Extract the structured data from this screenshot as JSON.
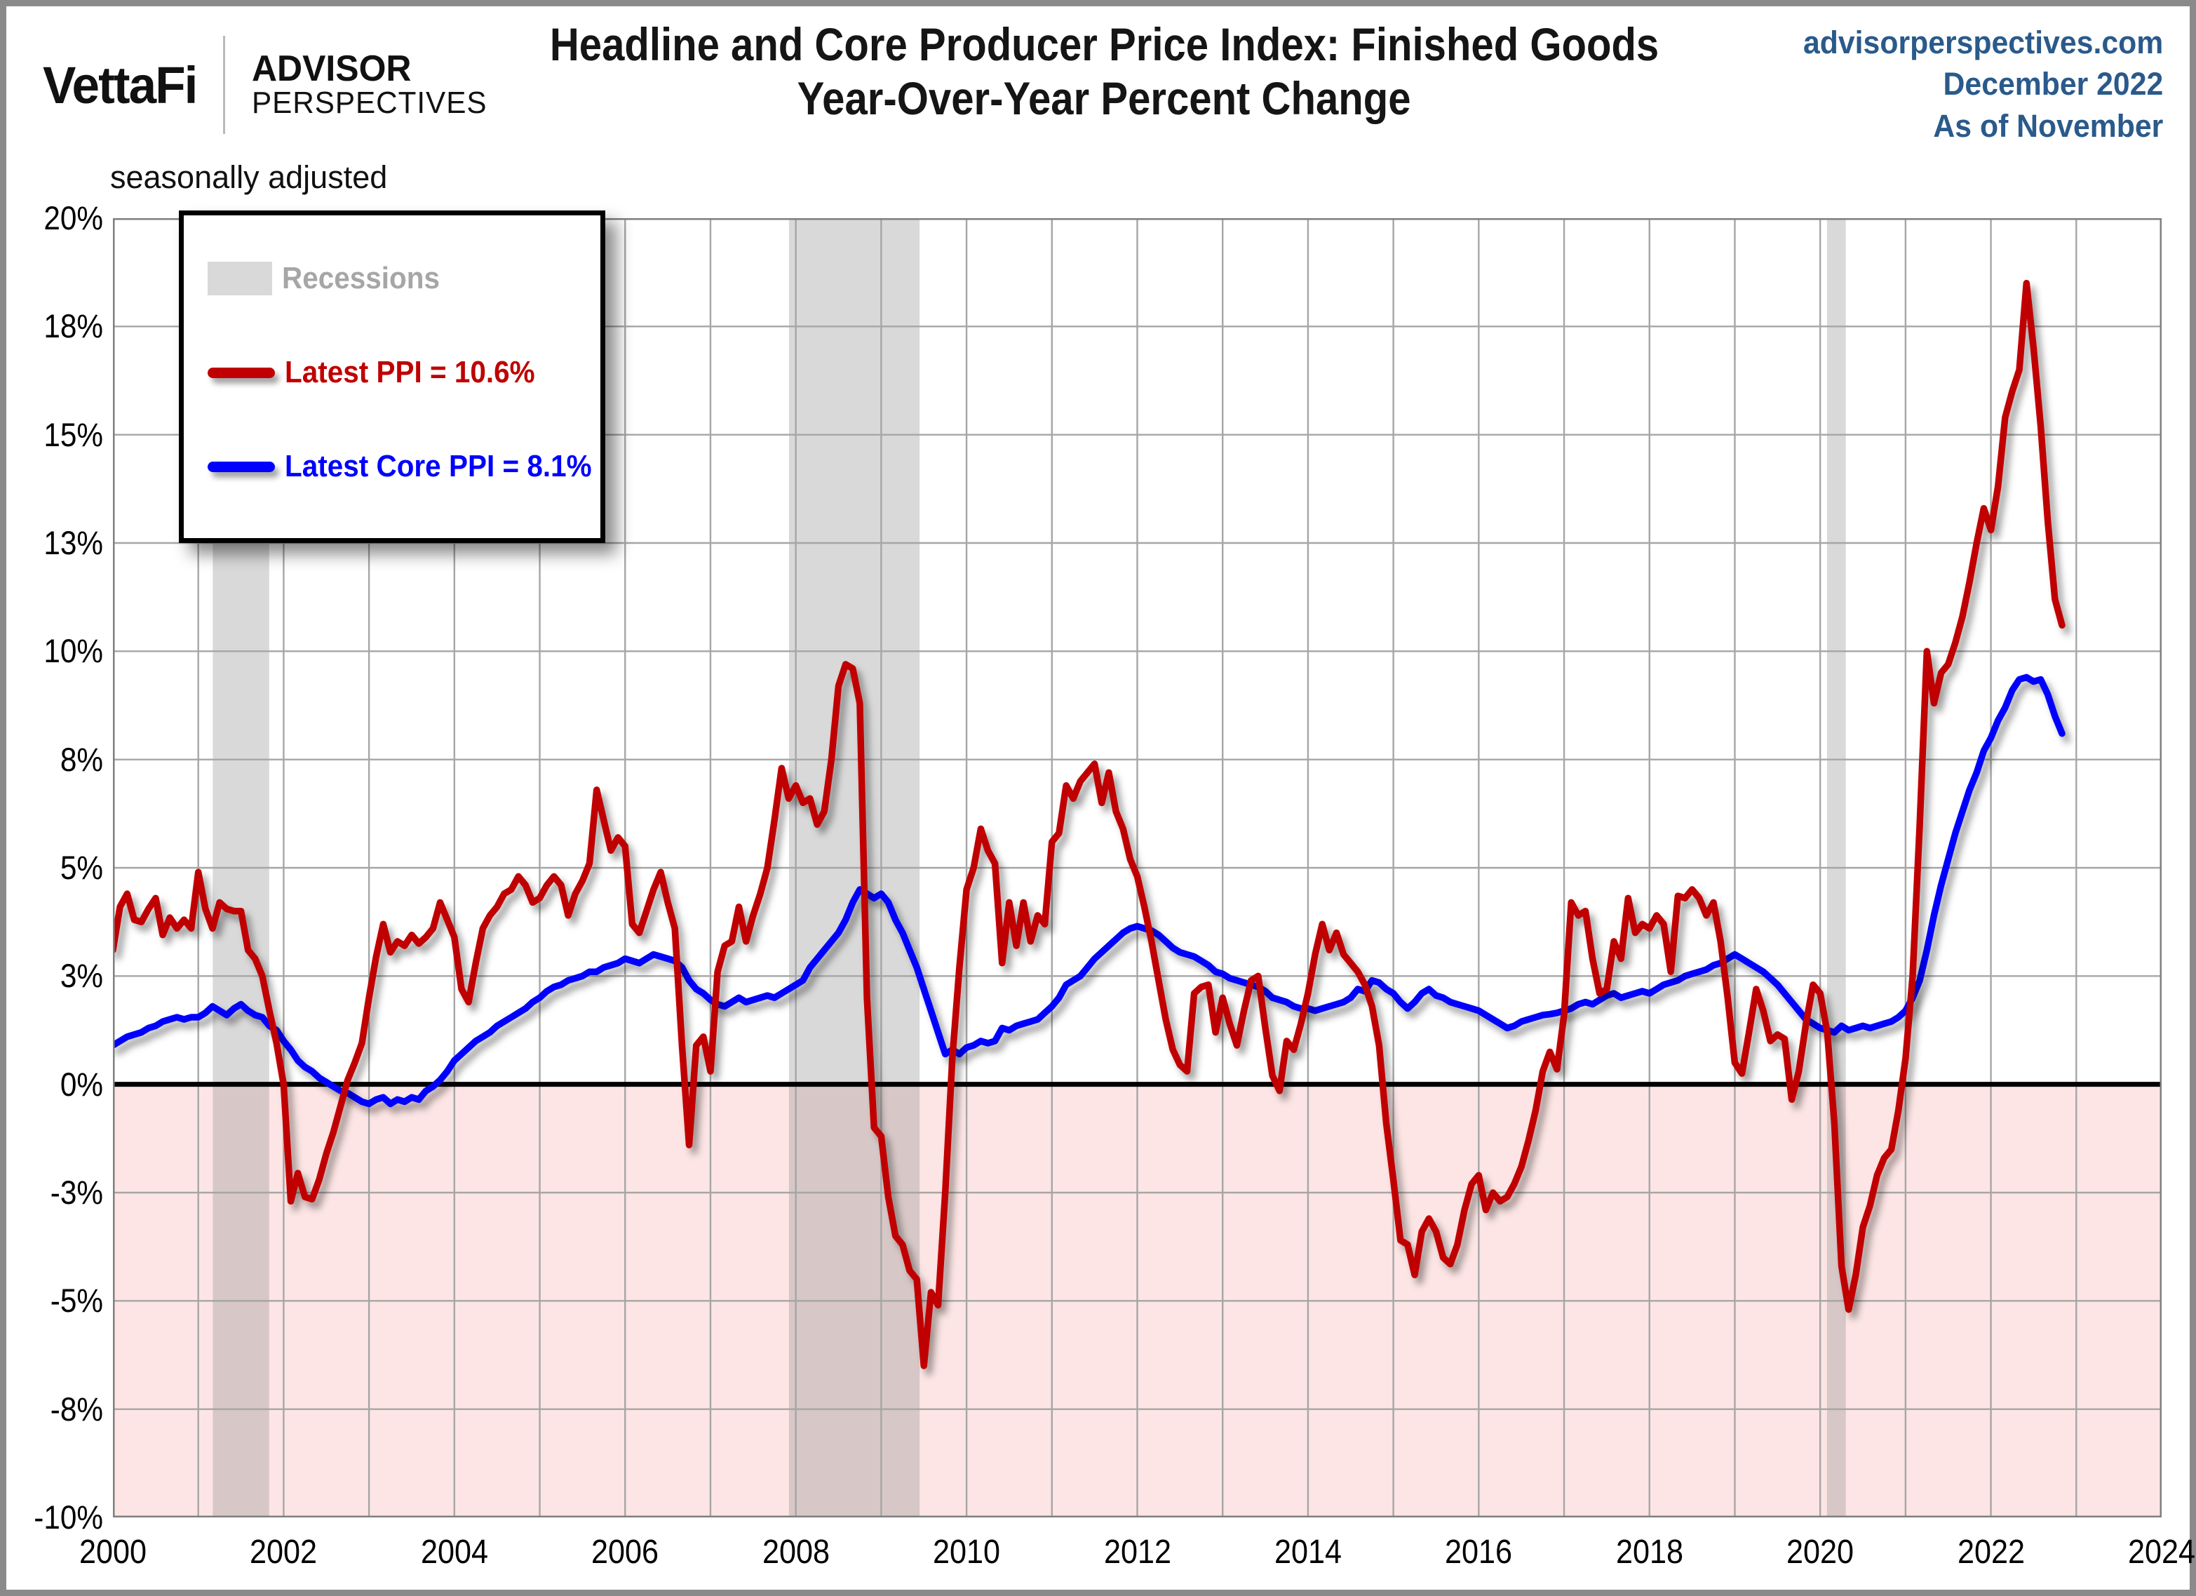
{
  "header": {
    "brand": {
      "vettafi": "VettaFi",
      "advisor_line1": "ADVISOR",
      "advisor_line2": "PERSPECTIVES"
    },
    "title_line1": "Headline and Core Producer Price Index: Finished Goods",
    "title_line2": "Year-Over-Year Percent Change",
    "source_site": "advisorperspectives.com",
    "source_date": "December 2022",
    "source_asof": "As of November",
    "note": "seasonally adjusted"
  },
  "legend": {
    "recessions_label": "Recessions",
    "ppi_label": "Latest PPI = 10.6%",
    "core_label": "Latest Core PPI = 8.1%"
  },
  "colors": {
    "ppi_red": "#c00000",
    "core_blue": "#0000ff",
    "recession_gray": "#d9d9d9",
    "recession_band": "rgba(128,128,128,0.30)",
    "below_zero_pink": "#fce5e4",
    "gridline_gray": "#a6a6a6",
    "plot_border_gray": "#7f7f7f",
    "header_blue": "#2a5a8b",
    "zero_line_black": "#000000"
  },
  "chart_data": {
    "type": "line",
    "title": "Headline and Core Producer Price Index: Finished Goods Year-Over-Year Percent Change",
    "subtitle": "seasonally adjusted",
    "x_start": 2000.0,
    "x_step": 0.083333,
    "x_axis": {
      "min": 2000,
      "max": 2024,
      "gridline_every_years": 1,
      "tick_label_every_years": 2,
      "tick_labels": [
        "2000",
        "2002",
        "2004",
        "2006",
        "2008",
        "2010",
        "2012",
        "2014",
        "2016",
        "2018",
        "2020",
        "2022",
        "2024"
      ]
    },
    "y_axis": {
      "min": -10,
      "max": 20,
      "gridline_every": 2.5,
      "unit": "%",
      "ticks": [
        {
          "value": 20,
          "label": "20%"
        },
        {
          "value": 17.5,
          "label": "18%"
        },
        {
          "value": 15,
          "label": "15%"
        },
        {
          "value": 12.5,
          "label": "13%"
        },
        {
          "value": 10,
          "label": "10%"
        },
        {
          "value": 7.5,
          "label": "8%"
        },
        {
          "value": 5,
          "label": "5%"
        },
        {
          "value": 2.5,
          "label": "3%"
        },
        {
          "value": 0,
          "label": "0%"
        },
        {
          "value": -2.5,
          "label": "-3%"
        },
        {
          "value": -5,
          "label": "-5%"
        },
        {
          "value": -7.5,
          "label": "-8%"
        },
        {
          "value": -10,
          "label": "-10%"
        }
      ]
    },
    "shaded_below_zero": true,
    "recessions": [
      [
        2001.17,
        2001.83
      ],
      [
        2007.92,
        2009.45
      ],
      [
        2020.08,
        2020.3
      ]
    ],
    "series": [
      {
        "name": "Latest PPI = 10.6%",
        "color": "#c00000",
        "latest_value": 10.6,
        "values": [
          3.1,
          4.1,
          4.4,
          3.8,
          3.75,
          4.05,
          4.3,
          3.45,
          3.85,
          3.6,
          3.8,
          3.6,
          4.9,
          4.05,
          3.6,
          4.2,
          4.05,
          4.0,
          4.0,
          3.1,
          2.9,
          2.5,
          1.7,
          0.95,
          0.0,
          -2.7,
          -2.05,
          -2.6,
          -2.65,
          -2.2,
          -1.6,
          -1.1,
          -0.5,
          0.1,
          0.5,
          0.95,
          2.0,
          2.95,
          3.7,
          3.05,
          3.3,
          3.2,
          3.45,
          3.25,
          3.4,
          3.6,
          4.2,
          3.8,
          3.4,
          2.2,
          1.9,
          2.8,
          3.6,
          3.9,
          4.1,
          4.4,
          4.5,
          4.8,
          4.6,
          4.2,
          4.3,
          4.6,
          4.8,
          4.6,
          3.9,
          4.4,
          4.7,
          5.1,
          6.8,
          6.1,
          5.4,
          5.7,
          5.5,
          3.7,
          3.5,
          4.0,
          4.5,
          4.9,
          4.2,
          3.6,
          0.9,
          -1.4,
          0.9,
          1.1,
          0.3,
          2.6,
          3.2,
          3.3,
          4.1,
          3.3,
          3.9,
          4.4,
          5.0,
          6.1,
          7.3,
          6.6,
          6.9,
          6.5,
          6.6,
          6.0,
          6.3,
          7.5,
          9.2,
          9.7,
          9.6,
          8.8,
          2.0,
          -1.0,
          -1.2,
          -2.6,
          -3.5,
          -3.7,
          -4.3,
          -4.5,
          -6.5,
          -4.8,
          -5.1,
          -2.5,
          0.6,
          2.7,
          4.5,
          5.0,
          5.9,
          5.4,
          5.1,
          2.8,
          4.2,
          3.2,
          4.2,
          3.3,
          3.9,
          3.7,
          5.6,
          5.8,
          6.9,
          6.6,
          7.0,
          7.2,
          7.4,
          6.5,
          7.2,
          6.3,
          5.9,
          5.2,
          4.8,
          4.1,
          3.3,
          2.4,
          1.5,
          0.8,
          0.45,
          0.3,
          2.1,
          2.25,
          2.3,
          1.2,
          2.0,
          1.4,
          0.9,
          1.7,
          2.4,
          2.5,
          1.3,
          0.2,
          -0.15,
          1.0,
          0.8,
          1.4,
          2.1,
          3.0,
          3.7,
          3.1,
          3.5,
          3.0,
          2.8,
          2.6,
          2.3,
          1.8,
          0.9,
          -0.9,
          -2.2,
          -3.6,
          -3.7,
          -4.4,
          -3.4,
          -3.1,
          -3.4,
          -4.0,
          -4.15,
          -3.7,
          -2.9,
          -2.3,
          -2.1,
          -2.9,
          -2.5,
          -2.7,
          -2.6,
          -2.3,
          -1.9,
          -1.3,
          -0.6,
          0.3,
          0.75,
          0.35,
          1.6,
          4.2,
          3.9,
          4.0,
          2.9,
          2.1,
          2.2,
          3.3,
          2.9,
          4.3,
          3.5,
          3.7,
          3.6,
          3.9,
          3.7,
          2.6,
          4.35,
          4.3,
          4.5,
          4.3,
          3.9,
          4.2,
          3.3,
          2.0,
          0.5,
          0.25,
          1.2,
          2.2,
          1.7,
          1.0,
          1.15,
          1.05,
          -0.35,
          0.3,
          1.4,
          2.3,
          2.1,
          1.2,
          -0.9,
          -4.2,
          -5.2,
          -4.4,
          -3.3,
          -2.8,
          -2.1,
          -1.7,
          -1.5,
          -0.6,
          0.6,
          2.5,
          6.0,
          10.0,
          8.8,
          9.5,
          9.7,
          10.2,
          10.8,
          11.6,
          12.5,
          13.3,
          12.8,
          13.8,
          15.4,
          16.0,
          16.5,
          18.5,
          17.0,
          15.2,
          13.0,
          11.2,
          10.6
        ]
      },
      {
        "name": "Latest Core PPI = 8.1%",
        "color": "#0000ff",
        "latest_value": 8.1,
        "values": [
          0.9,
          1.0,
          1.1,
          1.15,
          1.2,
          1.3,
          1.35,
          1.45,
          1.5,
          1.55,
          1.5,
          1.55,
          1.55,
          1.65,
          1.8,
          1.7,
          1.6,
          1.75,
          1.85,
          1.7,
          1.6,
          1.55,
          1.35,
          1.25,
          1.0,
          0.8,
          0.55,
          0.4,
          0.3,
          0.15,
          0.05,
          -0.05,
          -0.15,
          -0.2,
          -0.3,
          -0.4,
          -0.45,
          -0.35,
          -0.3,
          -0.45,
          -0.35,
          -0.4,
          -0.3,
          -0.35,
          -0.15,
          -0.05,
          0.1,
          0.3,
          0.55,
          0.7,
          0.85,
          1.0,
          1.1,
          1.2,
          1.35,
          1.45,
          1.55,
          1.65,
          1.75,
          1.9,
          2.0,
          2.15,
          2.25,
          2.3,
          2.4,
          2.45,
          2.5,
          2.6,
          2.6,
          2.7,
          2.75,
          2.8,
          2.9,
          2.85,
          2.8,
          2.9,
          3.0,
          2.95,
          2.9,
          2.85,
          2.7,
          2.4,
          2.2,
          2.1,
          1.95,
          1.85,
          1.8,
          1.9,
          2.0,
          1.9,
          1.95,
          2.0,
          2.05,
          2.0,
          2.1,
          2.2,
          2.3,
          2.4,
          2.7,
          2.9,
          3.1,
          3.3,
          3.5,
          3.8,
          4.2,
          4.5,
          4.4,
          4.3,
          4.4,
          4.2,
          3.8,
          3.5,
          3.1,
          2.7,
          2.2,
          1.7,
          1.2,
          0.7,
          0.8,
          0.7,
          0.85,
          0.9,
          1.0,
          0.95,
          1.0,
          1.3,
          1.25,
          1.35,
          1.4,
          1.45,
          1.5,
          1.65,
          1.8,
          2.0,
          2.3,
          2.4,
          2.5,
          2.7,
          2.9,
          3.05,
          3.2,
          3.35,
          3.5,
          3.6,
          3.65,
          3.6,
          3.55,
          3.45,
          3.3,
          3.15,
          3.05,
          3.0,
          2.95,
          2.85,
          2.75,
          2.6,
          2.55,
          2.45,
          2.4,
          2.35,
          2.3,
          2.25,
          2.15,
          2.0,
          1.95,
          1.9,
          1.8,
          1.75,
          1.75,
          1.7,
          1.75,
          1.8,
          1.85,
          1.9,
          2.0,
          2.2,
          2.15,
          2.4,
          2.35,
          2.2,
          2.1,
          1.9,
          1.75,
          1.9,
          2.1,
          2.2,
          2.05,
          2.0,
          1.9,
          1.85,
          1.8,
          1.75,
          1.7,
          1.6,
          1.5,
          1.4,
          1.3,
          1.35,
          1.45,
          1.5,
          1.55,
          1.6,
          1.62,
          1.65,
          1.7,
          1.75,
          1.85,
          1.9,
          1.85,
          1.95,
          2.05,
          2.1,
          2.0,
          2.05,
          2.1,
          2.15,
          2.1,
          2.2,
          2.3,
          2.35,
          2.4,
          2.5,
          2.55,
          2.6,
          2.65,
          2.75,
          2.8,
          2.9,
          3.0,
          2.9,
          2.8,
          2.7,
          2.6,
          2.45,
          2.3,
          2.1,
          1.9,
          1.7,
          1.5,
          1.4,
          1.3,
          1.25,
          1.2,
          1.35,
          1.25,
          1.3,
          1.35,
          1.3,
          1.35,
          1.4,
          1.45,
          1.55,
          1.7,
          2.0,
          2.4,
          3.1,
          3.9,
          4.6,
          5.2,
          5.8,
          6.3,
          6.8,
          7.2,
          7.7,
          8.0,
          8.4,
          8.7,
          9.1,
          9.35,
          9.4,
          9.3,
          9.35,
          9.0,
          8.5,
          8.1
        ]
      }
    ]
  }
}
